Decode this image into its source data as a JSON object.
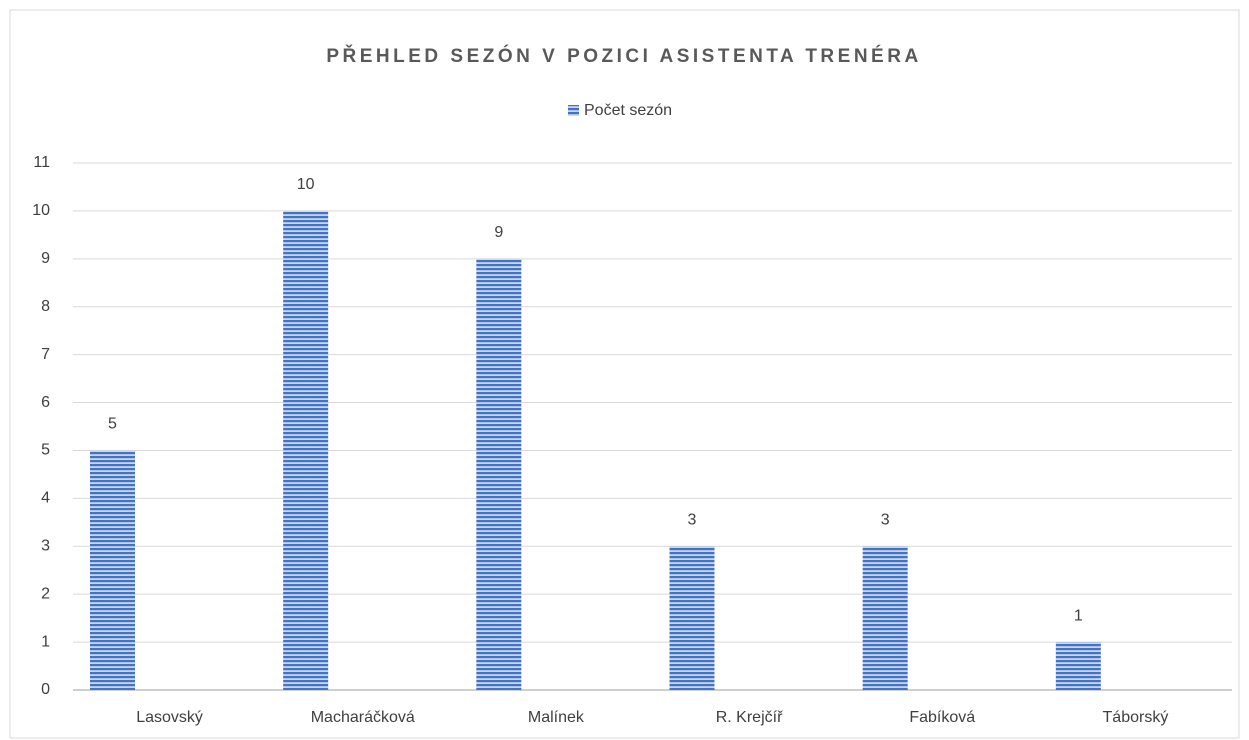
{
  "chart_data": {
    "type": "bar",
    "title": "PŘEHLED SEZÓN V POZICI ASISTENTA TRENÉRA",
    "categories": [
      "Lasovský",
      "Macharáčková",
      "Malínek",
      "R. Krejčíř",
      "Fabíková",
      "Táborský"
    ],
    "series": [
      {
        "name": "Počet sezón",
        "color": "#4472c4",
        "values": [
          5,
          10,
          9,
          3,
          3,
          1
        ]
      }
    ],
    "ylim": [
      0,
      11
    ],
    "yticks": [
      0,
      1,
      2,
      3,
      4,
      5,
      6,
      7,
      8,
      9,
      10,
      11
    ],
    "grid": true,
    "legend": "top"
  }
}
